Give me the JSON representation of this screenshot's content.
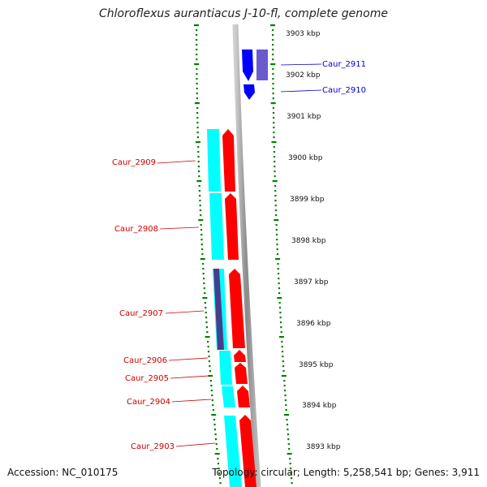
{
  "title": "Chloroflexus aurantiacus J-10-fl, complete genome",
  "accession": "Accession: NC_010175",
  "summary": "Topology: circular; Length: 5,258,541 bp; Genes: 3,911",
  "ruler": [
    {
      "label": "3903 kbp",
      "kbp": 3903
    },
    {
      "label": "3902 kbp",
      "kbp": 3902
    },
    {
      "label": "3901 kbp",
      "kbp": 3901
    },
    {
      "label": "3900 kbp",
      "kbp": 3900
    },
    {
      "label": "3899 kbp",
      "kbp": 3899
    },
    {
      "label": "3898 kbp",
      "kbp": 3898
    },
    {
      "label": "3897 kbp",
      "kbp": 3897
    },
    {
      "label": "3896 kbp",
      "kbp": 3896
    },
    {
      "label": "3895 kbp",
      "kbp": 3895
    },
    {
      "label": "3894 kbp",
      "kbp": 3894
    },
    {
      "label": "3893 kbp",
      "kbp": 3893
    }
  ],
  "genes": [
    {
      "name": "Caur_2911",
      "strand": "forward",
      "color": "#0000cc"
    },
    {
      "name": "Caur_2910",
      "strand": "forward",
      "color": "#0000cc"
    },
    {
      "name": "Caur_2909",
      "strand": "reverse",
      "color": "#cc0000"
    },
    {
      "name": "Caur_2908",
      "strand": "reverse",
      "color": "#cc0000"
    },
    {
      "name": "Caur_2907",
      "strand": "reverse",
      "color": "#cc0000"
    },
    {
      "name": "Caur_2906",
      "strand": "reverse",
      "color": "#cc0000"
    },
    {
      "name": "Caur_2905",
      "strand": "reverse",
      "color": "#cc0000"
    },
    {
      "name": "Caur_2904",
      "strand": "reverse",
      "color": "#cc0000"
    },
    {
      "name": "Caur_2903",
      "strand": "reverse",
      "color": "#cc0000"
    }
  ],
  "colors": {
    "forward_cds": "#0000ff",
    "reverse_cds": "#ff0000",
    "forward_gene": "#6a5acd",
    "reverse_gene": "#00ffff",
    "reverse_gene_alt": "#483d8b",
    "backbone": "#999999",
    "gc_ticks": "#008000"
  }
}
